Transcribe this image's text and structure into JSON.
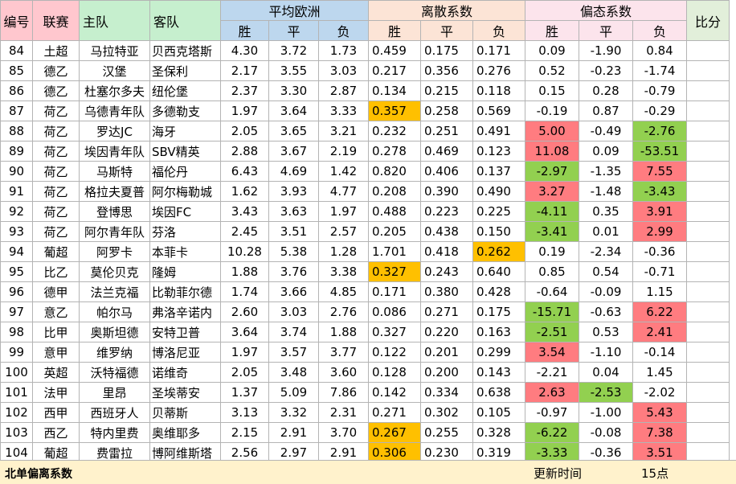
{
  "headers": {
    "id": "编号",
    "league": "联赛",
    "home": "主队",
    "away": "客队",
    "avg_euro": "平均欧洲",
    "dispersion": "离散系数",
    "deviation": "偏态系数",
    "score": "比分",
    "win": "胜",
    "draw": "平",
    "loss": "负"
  },
  "rows": [
    {
      "id": "84",
      "league": "土超",
      "home": "马拉特亚",
      "away": "贝西克塔斯",
      "e": [
        "4.30",
        "3.72",
        "1.73"
      ],
      "d": [
        "0.459",
        "0.175",
        "0.171"
      ],
      "p": [
        "0.09",
        "-1.90",
        "0.84"
      ],
      "hl": {
        "d": [
          null,
          null,
          null
        ],
        "p": [
          null,
          null,
          null
        ]
      }
    },
    {
      "id": "85",
      "league": "德乙",
      "home": "汉堡",
      "away": "圣保利",
      "e": [
        "2.17",
        "3.55",
        "3.03"
      ],
      "d": [
        "0.217",
        "0.356",
        "0.276"
      ],
      "p": [
        "0.52",
        "-0.23",
        "-1.74"
      ],
      "hl": {
        "d": [
          null,
          null,
          null
        ],
        "p": [
          null,
          null,
          null
        ]
      }
    },
    {
      "id": "86",
      "league": "德乙",
      "home": "杜塞尔多夫",
      "away": "纽伦堡",
      "e": [
        "2.37",
        "3.30",
        "2.87"
      ],
      "d": [
        "0.134",
        "0.215",
        "0.118"
      ],
      "p": [
        "0.15",
        "0.28",
        "-0.79"
      ],
      "hl": {
        "d": [
          null,
          null,
          null
        ],
        "p": [
          null,
          null,
          null
        ]
      }
    },
    {
      "id": "87",
      "league": "荷乙",
      "home": "乌德青年队",
      "away": "多德勒支",
      "e": [
        "1.97",
        "3.64",
        "3.33"
      ],
      "d": [
        "0.357",
        "0.258",
        "0.569"
      ],
      "p": [
        "-0.19",
        "0.87",
        "-0.29"
      ],
      "hl": {
        "d": [
          "orange",
          null,
          null
        ],
        "p": [
          null,
          null,
          null
        ]
      }
    },
    {
      "id": "88",
      "league": "荷乙",
      "home": "罗达JC",
      "away": "海牙",
      "e": [
        "2.05",
        "3.65",
        "3.21"
      ],
      "d": [
        "0.232",
        "0.251",
        "0.491"
      ],
      "p": [
        "5.00",
        "-0.49",
        "-2.76"
      ],
      "hl": {
        "d": [
          null,
          null,
          null
        ],
        "p": [
          "red",
          null,
          "green"
        ]
      }
    },
    {
      "id": "89",
      "league": "荷乙",
      "home": "埃因青年队",
      "away": "SBV精英",
      "e": [
        "2.88",
        "3.67",
        "2.19"
      ],
      "d": [
        "0.278",
        "0.469",
        "0.123"
      ],
      "p": [
        "11.08",
        "0.09",
        "-53.51"
      ],
      "hl": {
        "d": [
          null,
          null,
          null
        ],
        "p": [
          "red",
          null,
          "green"
        ]
      }
    },
    {
      "id": "90",
      "league": "荷乙",
      "home": "马斯特",
      "away": "福伦丹",
      "e": [
        "6.43",
        "4.69",
        "1.42"
      ],
      "d": [
        "0.820",
        "0.406",
        "0.137"
      ],
      "p": [
        "-2.97",
        "-1.35",
        "7.55"
      ],
      "hl": {
        "d": [
          null,
          null,
          null
        ],
        "p": [
          "green",
          null,
          "red"
        ]
      }
    },
    {
      "id": "91",
      "league": "荷乙",
      "home": "格拉夫夏普",
      "away": "阿尔梅勒城",
      "e": [
        "1.62",
        "3.93",
        "4.77"
      ],
      "d": [
        "0.208",
        "0.390",
        "0.490"
      ],
      "p": [
        "3.27",
        "-1.48",
        "-3.43"
      ],
      "hl": {
        "d": [
          null,
          null,
          null
        ],
        "p": [
          "red",
          null,
          "green"
        ]
      }
    },
    {
      "id": "92",
      "league": "荷乙",
      "home": "登博思",
      "away": "埃因FC",
      "e": [
        "3.43",
        "3.63",
        "1.97"
      ],
      "d": [
        "0.488",
        "0.223",
        "0.225"
      ],
      "p": [
        "-4.11",
        "0.35",
        "3.91"
      ],
      "hl": {
        "d": [
          null,
          null,
          null
        ],
        "p": [
          "green",
          null,
          "red"
        ]
      }
    },
    {
      "id": "93",
      "league": "荷乙",
      "home": "阿尔青年队",
      "away": "芬洛",
      "e": [
        "2.45",
        "3.51",
        "2.57"
      ],
      "d": [
        "0.205",
        "0.438",
        "0.150"
      ],
      "p": [
        "-3.41",
        "0.01",
        "2.99"
      ],
      "hl": {
        "d": [
          null,
          null,
          null
        ],
        "p": [
          "green",
          null,
          "red"
        ]
      }
    },
    {
      "id": "94",
      "league": "葡超",
      "home": "阿罗卡",
      "away": "本菲卡",
      "e": [
        "10.28",
        "5.38",
        "1.28"
      ],
      "d": [
        "1.701",
        "0.418",
        "0.262"
      ],
      "p": [
        "0.19",
        "-2.34",
        "-0.36"
      ],
      "hl": {
        "d": [
          null,
          null,
          "orange"
        ],
        "p": [
          null,
          null,
          null
        ]
      }
    },
    {
      "id": "95",
      "league": "比乙",
      "home": "莫伦贝克",
      "away": "隆姆",
      "e": [
        "1.88",
        "3.76",
        "3.38"
      ],
      "d": [
        "0.327",
        "0.243",
        "0.640"
      ],
      "p": [
        "0.85",
        "0.54",
        "-0.71"
      ],
      "hl": {
        "d": [
          "orange",
          null,
          null
        ],
        "p": [
          null,
          null,
          null
        ]
      }
    },
    {
      "id": "96",
      "league": "德甲",
      "home": "法兰克福",
      "away": "比勒菲尔德",
      "e": [
        "1.74",
        "3.66",
        "4.85"
      ],
      "d": [
        "0.171",
        "0.380",
        "0.428"
      ],
      "p": [
        "-0.64",
        "-0.09",
        "1.15"
      ],
      "hl": {
        "d": [
          null,
          null,
          null
        ],
        "p": [
          null,
          null,
          null
        ]
      }
    },
    {
      "id": "97",
      "league": "意乙",
      "home": "帕尔马",
      "away": "弗洛辛诺内",
      "e": [
        "2.60",
        "3.03",
        "2.76"
      ],
      "d": [
        "0.086",
        "0.271",
        "0.175"
      ],
      "p": [
        "-15.71",
        "-0.63",
        "6.22"
      ],
      "hl": {
        "d": [
          null,
          null,
          null
        ],
        "p": [
          "green",
          null,
          "red"
        ]
      }
    },
    {
      "id": "98",
      "league": "比甲",
      "home": "奥斯坦德",
      "away": "安特卫普",
      "e": [
        "3.64",
        "3.74",
        "1.88"
      ],
      "d": [
        "0.327",
        "0.220",
        "0.163"
      ],
      "p": [
        "-2.51",
        "0.53",
        "2.41"
      ],
      "hl": {
        "d": [
          null,
          null,
          null
        ],
        "p": [
          "green",
          null,
          "red"
        ]
      }
    },
    {
      "id": "99",
      "league": "意甲",
      "home": "维罗纳",
      "away": "博洛尼亚",
      "e": [
        "1.97",
        "3.57",
        "3.77"
      ],
      "d": [
        "0.122",
        "0.201",
        "0.299"
      ],
      "p": [
        "3.54",
        "-1.10",
        "-0.14"
      ],
      "hl": {
        "d": [
          null,
          null,
          null
        ],
        "p": [
          "red",
          null,
          null
        ]
      }
    },
    {
      "id": "100",
      "league": "英超",
      "home": "沃特福德",
      "away": "诺维奇",
      "e": [
        "2.05",
        "3.48",
        "3.60"
      ],
      "d": [
        "0.128",
        "0.200",
        "0.143"
      ],
      "p": [
        "-2.21",
        "0.04",
        "1.45"
      ],
      "hl": {
        "d": [
          null,
          null,
          null
        ],
        "p": [
          null,
          null,
          null
        ]
      }
    },
    {
      "id": "101",
      "league": "法甲",
      "home": "里昂",
      "away": "圣埃蒂安",
      "e": [
        "1.37",
        "5.09",
        "7.86"
      ],
      "d": [
        "0.142",
        "0.334",
        "0.638"
      ],
      "p": [
        "2.63",
        "-2.53",
        "-2.02"
      ],
      "hl": {
        "d": [
          null,
          null,
          null
        ],
        "p": [
          "red",
          "green",
          null
        ]
      }
    },
    {
      "id": "102",
      "league": "西甲",
      "home": "西班牙人",
      "away": "贝蒂斯",
      "e": [
        "3.13",
        "3.32",
        "2.31"
      ],
      "d": [
        "0.271",
        "0.302",
        "0.105"
      ],
      "p": [
        "-0.97",
        "-1.00",
        "5.43"
      ],
      "hl": {
        "d": [
          null,
          null,
          null
        ],
        "p": [
          null,
          null,
          "red"
        ]
      }
    },
    {
      "id": "103",
      "league": "西乙",
      "home": "特内里费",
      "away": "奥维耶多",
      "e": [
        "2.15",
        "2.91",
        "3.70"
      ],
      "d": [
        "0.267",
        "0.255",
        "0.328"
      ],
      "p": [
        "-6.22",
        "-0.08",
        "7.38"
      ],
      "hl": {
        "d": [
          "orange",
          null,
          null
        ],
        "p": [
          "green",
          null,
          "red"
        ]
      }
    },
    {
      "id": "104",
      "league": "葡超",
      "home": "费雷拉",
      "away": "博阿维斯塔",
      "e": [
        "2.56",
        "2.97",
        "2.91"
      ],
      "d": [
        "0.306",
        "0.230",
        "0.319"
      ],
      "p": [
        "-3.33",
        "-0.36",
        "3.51"
      ],
      "hl": {
        "d": [
          "orange",
          null,
          null
        ],
        "p": [
          "green",
          null,
          "red"
        ]
      }
    }
  ],
  "footer": {
    "title": "北单偏离系数",
    "update_label": "更新时间",
    "update_value": "15点"
  },
  "colors": {
    "orange": "#ffc000",
    "red": "#ff7c80",
    "green": "#92d050"
  }
}
